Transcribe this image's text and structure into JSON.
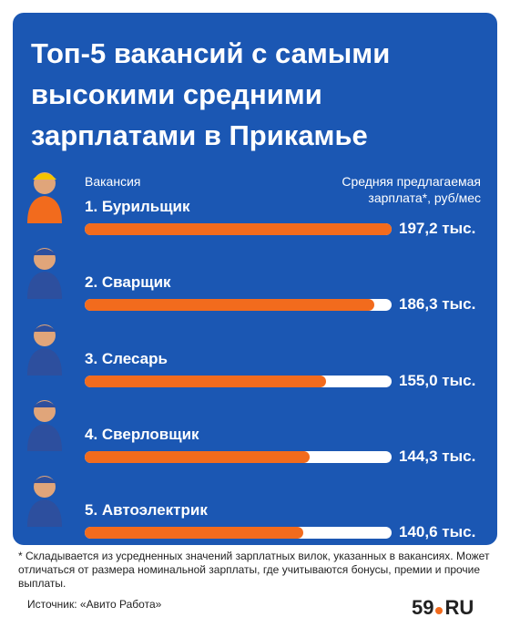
{
  "chart_data": {
    "type": "bar",
    "title": "Топ-5 вакансий с самыми высокими средними зарплатами в Прикамье",
    "category_header": "Вакансия",
    "value_header": "Средняя предлагаемая зарплата*, руб/мес",
    "categories": [
      "1. Бурильщик",
      "2. Сварщик",
      "3. Слесарь",
      "4. Сверловщик",
      "5. Автоэлектрик"
    ],
    "values": [
      197.2,
      186.3,
      155.0,
      144.3,
      140.6
    ],
    "value_labels": [
      "197,2 тыс.",
      "186,3 тыс.",
      "155,0 тыс.",
      "144,3 тыс.",
      "140,6 тыс."
    ],
    "color": "#f26b1d",
    "xlim": [
      0,
      197.2
    ]
  },
  "footnote": "* Складывается из усредненных значений зарплатных вилок, указанных в вакансиях. Может отличаться от размера номинальной зарплаты, где учитываются бонусы, премии и прочие выплаты.",
  "source": "Источник: «Авито Работа»",
  "logo": {
    "number": "59",
    "domain": "RU"
  }
}
